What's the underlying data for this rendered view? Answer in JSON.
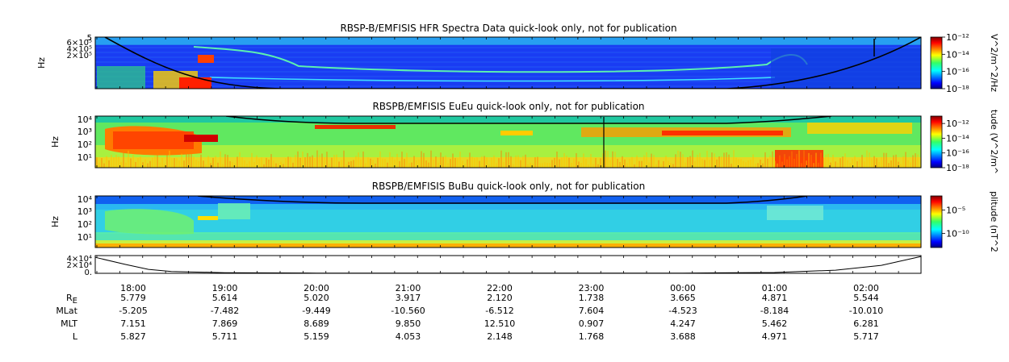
{
  "chart_data": [
    {
      "type": "heatmap",
      "title": "RBSP-B/EMFISIS  HFR Spectra Data quick-look only, not for publication",
      "ylabel": "Hz",
      "y_tick_labels": [
        "6×10⁵",
        "4×10⁵",
        "2×10⁵"
      ],
      "y_top_label": "5",
      "colorbar_label": "V^2/m^2/Hz",
      "colorbar_tick_labels": [
        "10⁻¹²",
        "10⁻¹⁴",
        "10⁻¹⁶",
        "10⁻¹⁸"
      ],
      "colorbar_range": [
        -18,
        -12
      ]
    },
    {
      "type": "heatmap",
      "title": "RBSPB/EMFISIS  EuEu quick-look only, not for publication",
      "ylabel": "Hz",
      "y_tick_labels": [
        "10⁴",
        "10³",
        "10²",
        "10¹"
      ],
      "colorbar_label": "tude (V^2/m^",
      "colorbar_tick_labels": [
        "10⁻¹²",
        "10⁻¹⁴",
        "10⁻¹⁶",
        "10⁻¹⁸"
      ],
      "colorbar_range": [
        -18,
        -11
      ]
    },
    {
      "type": "heatmap",
      "title": "RBSPB/EMFISIS  BuBu quick-look only, not for publication",
      "ylabel": "Hz",
      "y_tick_labels": [
        "10⁴",
        "10³",
        "10²",
        "10¹"
      ],
      "colorbar_label": "plitude (nT^2",
      "colorbar_tick_labels": [
        "10⁻⁵",
        "10⁻¹⁰"
      ],
      "colorbar_range": [
        -13,
        -2
      ]
    },
    {
      "type": "line",
      "y_tick_labels": [
        "4×10⁴",
        "2×10⁴",
        "0."
      ],
      "x": [
        "17:35",
        "17:55",
        "18:10",
        "18:25",
        "19:00",
        "20:00",
        "21:00",
        "22:00",
        "23:00",
        "00:00",
        "01:00",
        "01:40",
        "02:10",
        "02:40"
      ],
      "values": [
        36000,
        20000,
        9000,
        4000,
        1500,
        600,
        400,
        300,
        350,
        500,
        1800,
        7000,
        18000,
        38000
      ],
      "ylim": [
        0,
        40000
      ]
    }
  ],
  "x_axis": {
    "time_labels": [
      "18:00",
      "19:00",
      "20:00",
      "21:00",
      "22:00",
      "23:00",
      "00:00",
      "01:00",
      "02:00"
    ],
    "rows": [
      {
        "label": "R",
        "label_sub": "E",
        "values": [
          "5.779",
          "5.614",
          "5.020",
          "3.917",
          "2.120",
          "1.738",
          "3.665",
          "4.871",
          "5.544"
        ]
      },
      {
        "label": "MLat",
        "values": [
          "-5.205",
          "-7.482",
          "-9.449",
          "-10.560",
          "-6.512",
          "7.604",
          "-4.523",
          "-8.184",
          "-10.010"
        ]
      },
      {
        "label": "MLT",
        "values": [
          "7.151",
          "7.869",
          "8.689",
          "9.850",
          "12.510",
          "0.907",
          "4.247",
          "5.462",
          "6.281"
        ]
      },
      {
        "label": "L",
        "values": [
          "5.827",
          "5.711",
          "5.159",
          "4.053",
          "2.148",
          "1.768",
          "3.688",
          "4.971",
          "5.717"
        ]
      }
    ]
  }
}
